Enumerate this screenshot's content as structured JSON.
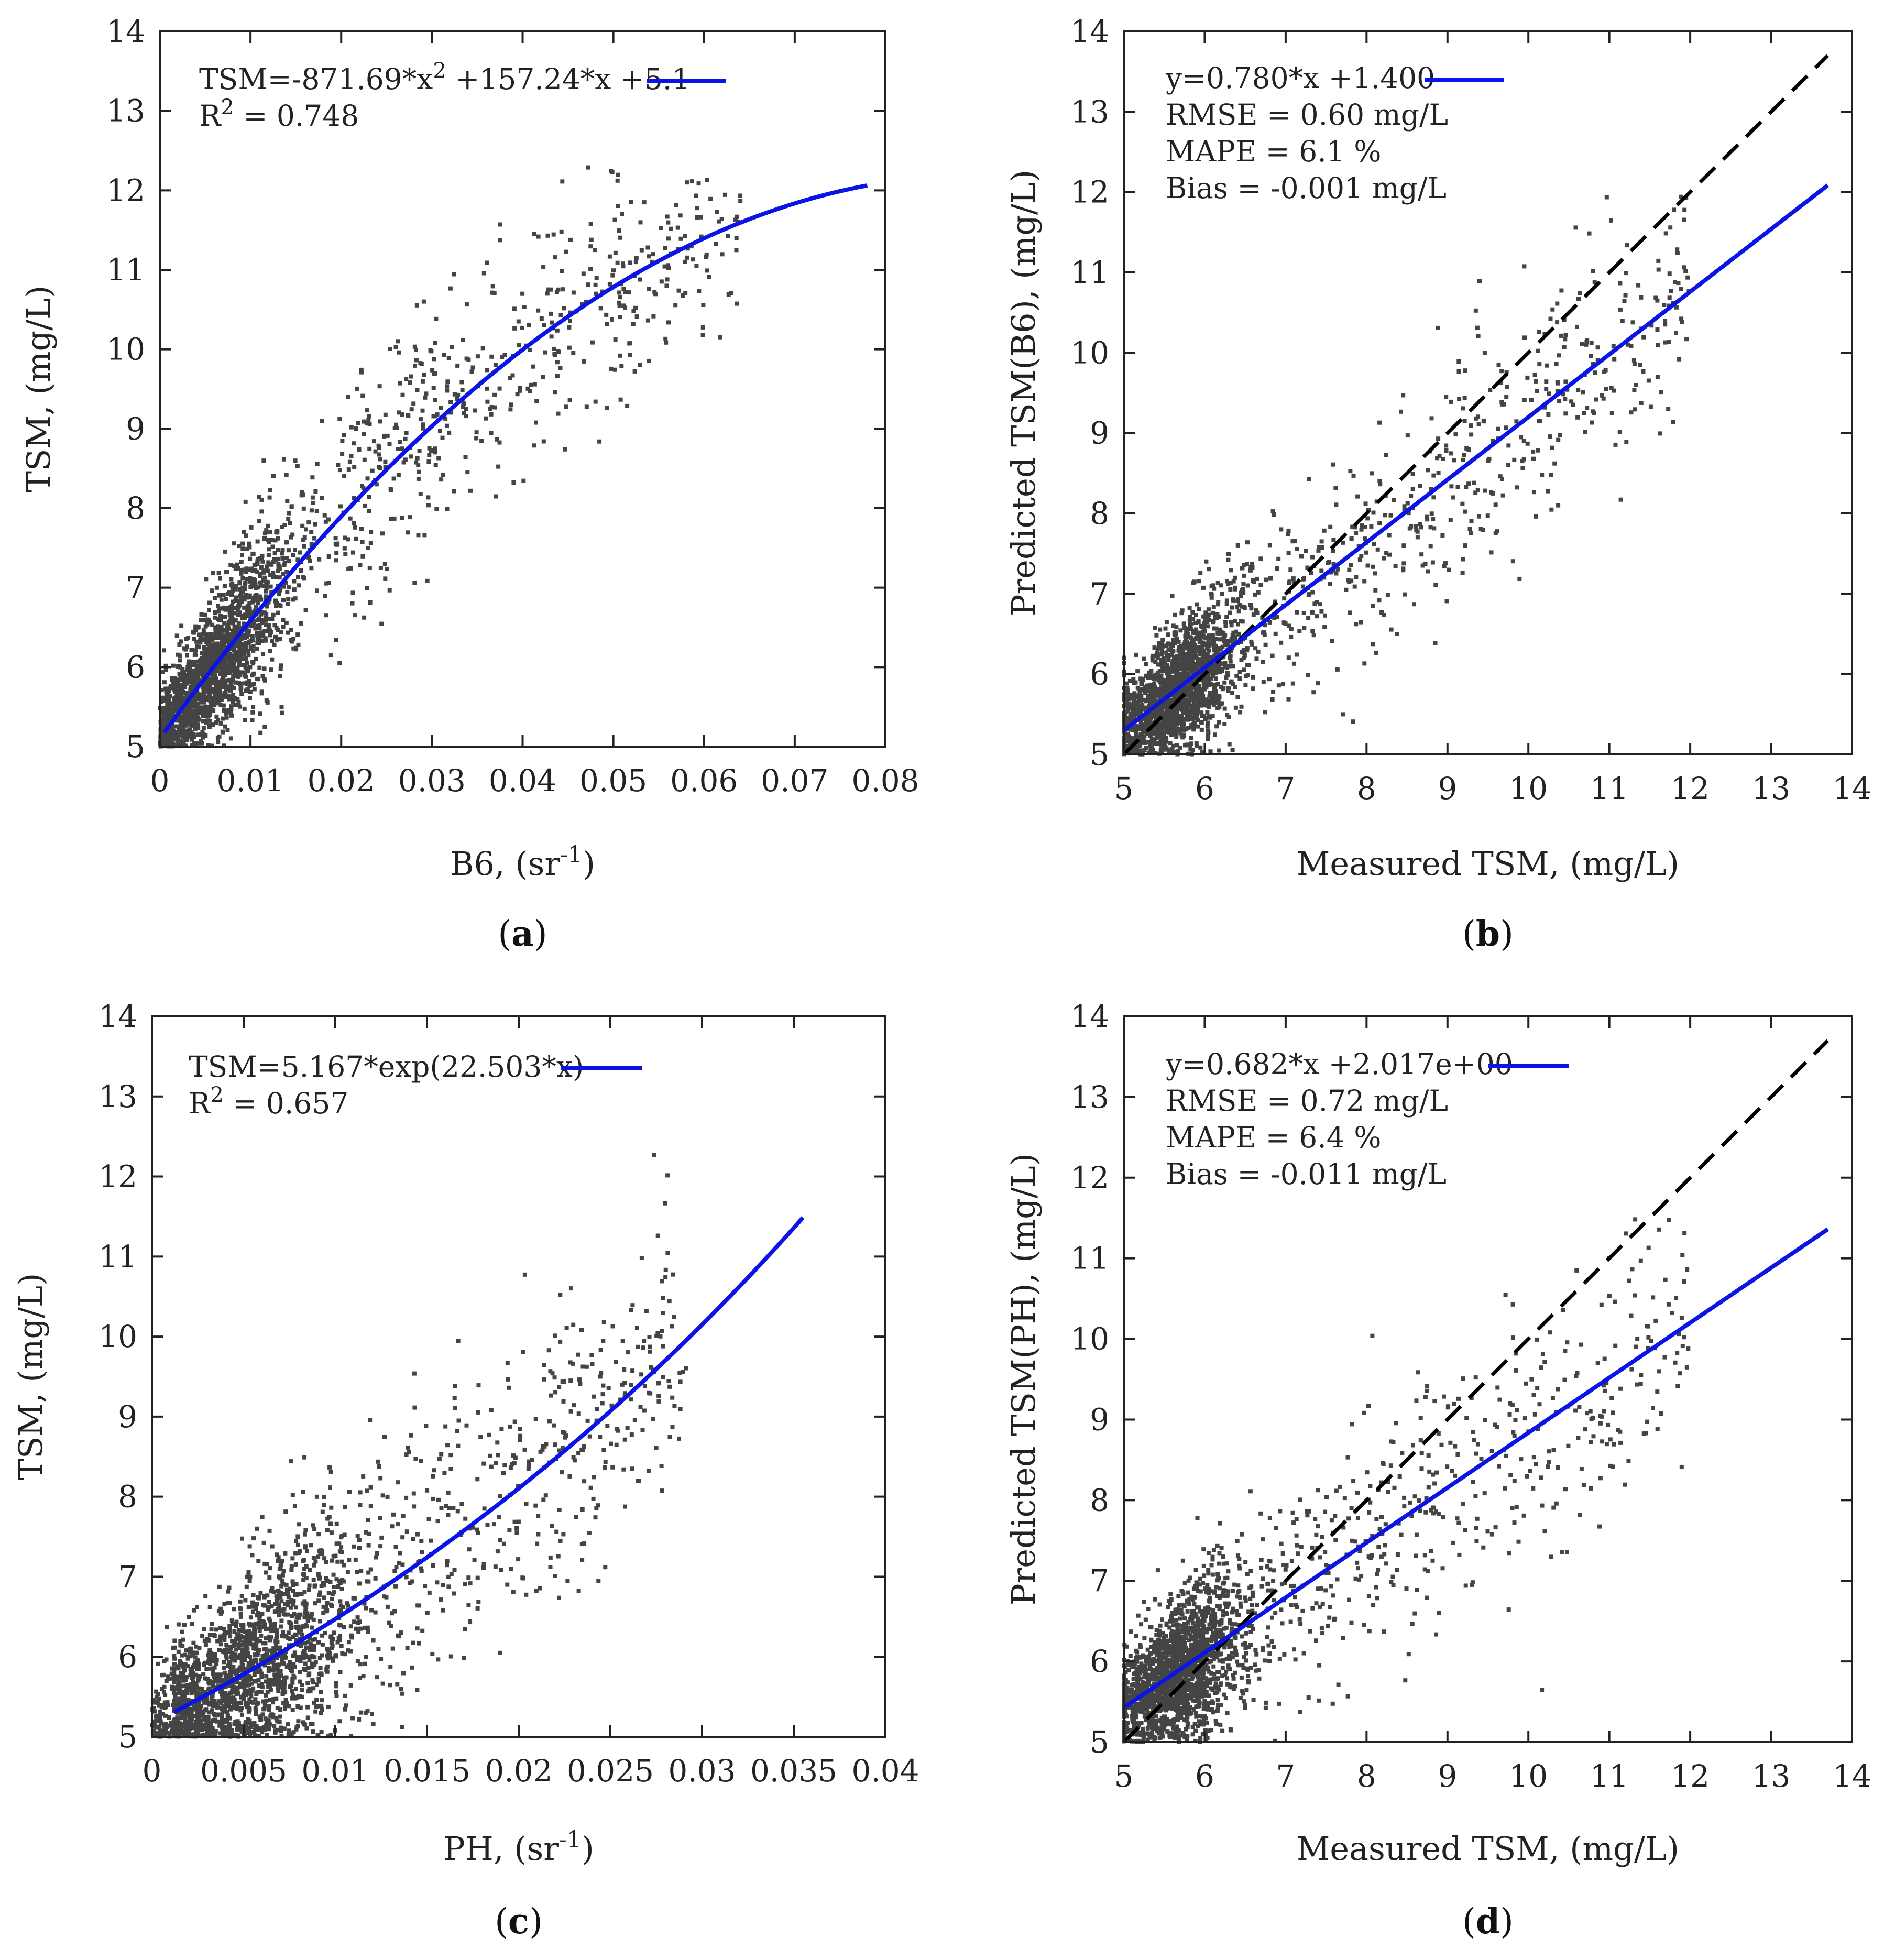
{
  "figure": {
    "colors": {
      "fit": "#0b14e6",
      "points": "#444444",
      "identity": "#000000",
      "frame": "#222222"
    }
  },
  "chart_data": [
    {
      "panel": "(a)",
      "panel_letter": "a",
      "type": "scatter",
      "xlabel": "B6, (sr",
      "xlabel_sup": "-1",
      "xlabel_tail": ")",
      "ylabel": "TSM, (mg/L)",
      "xlim": [
        0,
        0.08
      ],
      "ylim": [
        5,
        14
      ],
      "xticks": [
        0,
        0.01,
        0.02,
        0.03,
        0.04,
        0.05,
        0.06,
        0.07,
        0.08
      ],
      "xtick_labels": [
        "0",
        "0.01",
        "0.02",
        "0.03",
        "0.04",
        "0.05",
        "0.06",
        "0.07",
        "0.08"
      ],
      "yticks": [
        5,
        6,
        7,
        8,
        9,
        10,
        11,
        12,
        13,
        14
      ],
      "ytick_labels": [
        "5",
        "6",
        "7",
        "8",
        "9",
        "10",
        "11",
        "12",
        "13",
        "14"
      ],
      "fit": {
        "kind": "poly2",
        "a": -871.69,
        "b": 157.24,
        "c": 5.1,
        "xrange": [
          0.0005,
          0.078
        ]
      },
      "legend": {
        "line1": "TSM=-871.69*x",
        "line1_sup": "2",
        "line1_tail": " +157.24*x +5.1",
        "line2_pre": "R",
        "line2_sup": "2",
        "line2_tail": " = 0.748"
      },
      "identity_line": false,
      "scatter_model": {
        "n": 2300,
        "x_center": 0.006,
        "x_spread_dense": 0.004,
        "noise_sd": 0.62,
        "ymin": 5,
        "ymax": 12.3
      }
    },
    {
      "panel": "(b)",
      "panel_letter": "b",
      "type": "scatter",
      "xlabel": "Measured TSM, (mg/L)",
      "ylabel": "Predicted TSM(B6), (mg/L)",
      "xlim": [
        5,
        14
      ],
      "ylim": [
        5,
        14
      ],
      "xticks": [
        5,
        6,
        7,
        8,
        9,
        10,
        11,
        12,
        13,
        14
      ],
      "xtick_labels": [
        "5",
        "6",
        "7",
        "8",
        "9",
        "10",
        "11",
        "12",
        "13",
        "14"
      ],
      "yticks": [
        5,
        6,
        7,
        8,
        9,
        10,
        11,
        12,
        13,
        14
      ],
      "ytick_labels": [
        "5",
        "6",
        "7",
        "8",
        "9",
        "10",
        "11",
        "12",
        "13",
        "14"
      ],
      "fit": {
        "kind": "linear",
        "slope": 0.78,
        "intercept": 1.4,
        "xrange": [
          5,
          13.7
        ]
      },
      "legend": {
        "line1": "y=0.780*x +1.400",
        "line2": "RMSE = 0.60 mg/L",
        "line3": "MAPE = 6.1 %",
        "line4": "Bias = -0.001 mg/L"
      },
      "identity_line": true,
      "scatter_model": {
        "n": 2300,
        "x_center": 5.7,
        "noise_sd": 0.55,
        "ymin": 5,
        "ymax": 12
      }
    },
    {
      "panel": "(c)",
      "panel_letter": "c",
      "type": "scatter",
      "xlabel": "PH, (sr",
      "xlabel_sup": "-1",
      "xlabel_tail": ")",
      "ylabel": "TSM, (mg/L)",
      "xlim": [
        0,
        0.04
      ],
      "ylim": [
        5,
        14
      ],
      "xticks": [
        0,
        0.005,
        0.01,
        0.015,
        0.02,
        0.025,
        0.03,
        0.035,
        0.04
      ],
      "xtick_labels": [
        "0",
        "0.005",
        "0.01",
        "0.015",
        "0.02",
        "0.025",
        "0.03",
        "0.035",
        "0.04"
      ],
      "yticks": [
        5,
        6,
        7,
        8,
        9,
        10,
        11,
        12,
        13,
        14
      ],
      "ytick_labels": [
        "5",
        "6",
        "7",
        "8",
        "9",
        "10",
        "11",
        "12",
        "13",
        "14"
      ],
      "fit": {
        "kind": "exp",
        "a": 5.167,
        "b": 22.503,
        "xrange": [
          0.0012,
          0.0355
        ]
      },
      "legend": {
        "line1": "TSM=5.167*exp(22.503*x)",
        "line2_pre": "R",
        "line2_sup": "2",
        "line2_tail": " = 0.657"
      },
      "identity_line": false,
      "scatter_model": {
        "n": 2300,
        "x_center": 0.005,
        "x_spread_dense": 0.003,
        "noise_sd": 0.7,
        "ymin": 5,
        "ymax": 12.3
      }
    },
    {
      "panel": "(d)",
      "panel_letter": "d",
      "type": "scatter",
      "xlabel": "Measured TSM, (mg/L)",
      "ylabel": "Predicted TSM(PH), (mg/L)",
      "xlim": [
        5,
        14
      ],
      "ylim": [
        5,
        14
      ],
      "xticks": [
        5,
        6,
        7,
        8,
        9,
        10,
        11,
        12,
        13,
        14
      ],
      "xtick_labels": [
        "5",
        "6",
        "7",
        "8",
        "9",
        "10",
        "11",
        "12",
        "13",
        "14"
      ],
      "yticks": [
        5,
        6,
        7,
        8,
        9,
        10,
        11,
        12,
        13,
        14
      ],
      "ytick_labels": [
        "5",
        "6",
        "7",
        "8",
        "9",
        "10",
        "11",
        "12",
        "13",
        "14"
      ],
      "fit": {
        "kind": "linear",
        "slope": 0.682,
        "intercept": 2.017,
        "xrange": [
          5,
          13.7
        ]
      },
      "legend": {
        "line1": "y=0.682*x +2.017e+00",
        "line2": "RMSE = 0.72 mg/L",
        "line3": "MAPE = 6.4 %",
        "line4": "Bias = -0.011 mg/L"
      },
      "identity_line": true,
      "scatter_model": {
        "n": 2300,
        "x_center": 5.7,
        "noise_sd": 0.62,
        "ymin": 5,
        "ymax": 11.5
      }
    }
  ]
}
